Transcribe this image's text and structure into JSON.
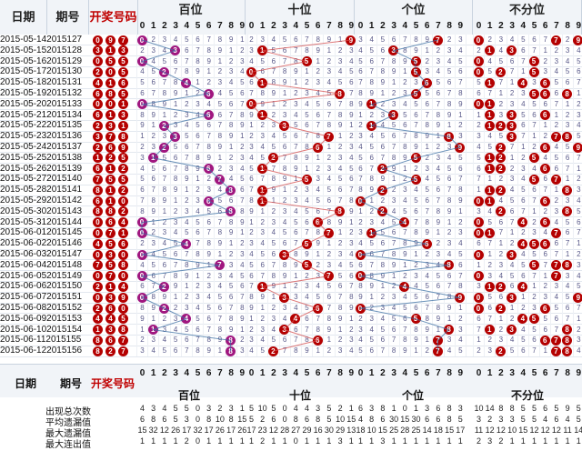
{
  "header": {
    "date_label": "日期",
    "issue_label": "期号",
    "draw_label": "开奖号码",
    "groups": [
      "百位",
      "十位",
      "个位",
      "不分位"
    ],
    "digits": [
      "0",
      "1",
      "2",
      "3",
      "4",
      "5",
      "6",
      "7",
      "8",
      "9"
    ]
  },
  "rows": [
    {
      "date": "2015-05-14",
      "issue": "2015127",
      "nums": [
        0,
        9,
        7
      ]
    },
    {
      "date": "2015-05-15",
      "issue": "2015128",
      "nums": [
        3,
        1,
        3
      ]
    },
    {
      "date": "2015-05-16",
      "issue": "2015129",
      "nums": [
        0,
        5,
        5
      ]
    },
    {
      "date": "2015-05-17",
      "issue": "2015130",
      "nums": [
        2,
        0,
        5
      ]
    },
    {
      "date": "2015-05-18",
      "issue": "2015131",
      "nums": [
        4,
        1,
        6
      ]
    },
    {
      "date": "2015-05-19",
      "issue": "2015132",
      "nums": [
        6,
        8,
        5
      ]
    },
    {
      "date": "2015-05-20",
      "issue": "2015133",
      "nums": [
        0,
        0,
        1
      ]
    },
    {
      "date": "2015-05-21",
      "issue": "2015134",
      "nums": [
        6,
        1,
        3
      ]
    },
    {
      "date": "2015-05-22",
      "issue": "2015135",
      "nums": [
        2,
        3,
        1
      ]
    },
    {
      "date": "2015-05-23",
      "issue": "2015136",
      "nums": [
        3,
        7,
        8
      ]
    },
    {
      "date": "2015-05-24",
      "issue": "2015137",
      "nums": [
        2,
        6,
        9
      ]
    },
    {
      "date": "2015-05-25",
      "issue": "2015138",
      "nums": [
        1,
        2,
        5
      ]
    },
    {
      "date": "2015-05-26",
      "issue": "2015139",
      "nums": [
        6,
        1,
        2
      ]
    },
    {
      "date": "2015-05-27",
      "issue": "2015140",
      "nums": [
        7,
        5,
        5
      ]
    },
    {
      "date": "2015-05-28",
      "issue": "2015141",
      "nums": [
        8,
        1,
        2
      ]
    },
    {
      "date": "2015-05-29",
      "issue": "2015142",
      "nums": [
        6,
        1,
        0
      ]
    },
    {
      "date": "2015-05-30",
      "issue": "2015143",
      "nums": [
        8,
        8,
        2
      ]
    },
    {
      "date": "2015-05-31",
      "issue": "2015144",
      "nums": [
        0,
        6,
        4
      ]
    },
    {
      "date": "2015-06-01",
      "issue": "2015145",
      "nums": [
        0,
        7,
        1
      ]
    },
    {
      "date": "2015-06-02",
      "issue": "2015146",
      "nums": [
        4,
        5,
        6
      ]
    },
    {
      "date": "2015-06-03",
      "issue": "2015147",
      "nums": [
        0,
        3,
        0
      ]
    },
    {
      "date": "2015-06-04",
      "issue": "2015148",
      "nums": [
        7,
        5,
        8
      ]
    },
    {
      "date": "2015-06-05",
      "issue": "2015149",
      "nums": [
        0,
        7,
        0
      ]
    },
    {
      "date": "2015-06-06",
      "issue": "2015150",
      "nums": [
        2,
        1,
        4
      ]
    },
    {
      "date": "2015-06-07",
      "issue": "2015151",
      "nums": [
        0,
        3,
        9
      ]
    },
    {
      "date": "2015-06-08",
      "issue": "2015152",
      "nums": [
        2,
        6,
        0
      ]
    },
    {
      "date": "2015-06-09",
      "issue": "2015153",
      "nums": [
        4,
        4,
        5
      ]
    },
    {
      "date": "2015-06-10",
      "issue": "2015154",
      "nums": [
        1,
        3,
        8
      ]
    },
    {
      "date": "2015-06-11",
      "issue": "2015155",
      "nums": [
        8,
        6,
        7
      ]
    },
    {
      "date": "2015-06-12",
      "issue": "2015156",
      "nums": [
        8,
        2,
        7
      ]
    }
  ],
  "footer": {
    "date_label": "日期",
    "issue_label": "期号",
    "draw_label": "开奖号码",
    "stat_labels": [
      "出现总次数",
      "平均遗漏值",
      "最大遗漏值",
      "最大连出值"
    ],
    "stats": {
      "bai": [
        "4 3 4 5 5 0 3 2 3 1",
        "6 8 6 5 3 0 8 10 8 15",
        "15 32 12 26 17 32 17 26 17 26",
        "1 1 1 1 2 0 1 1 1 1"
      ],
      "shi": [
        "5 10 5 0 4 4 3 5 2 1",
        "5 2 6 0 8 6 8 5 10 15",
        "17 23 12 28 27 29 16 30 29 13",
        "1 2 1 1 0 1 1 1 3 1"
      ],
      "ge": [
        "6 3 8 1 0 1 3 6 8 3",
        "4 8 6 30 15 30 6 6 8 5",
        "18 10 15 25 28 25 14 18 15 17",
        "1 1 3 1 1 1 1 1 1 1"
      ],
      "bufen": [
        "10 14 8 8 5 5 6 5 9 5",
        "3 2 3 3 5 5 4 6 4 5",
        "11 12 12 10 15 12 12 12 11 14",
        "2 3 2 1 1 1 1 1 1 1"
      ]
    }
  },
  "colors": {
    "ball": "#b40000",
    "ball_alt": "#a0167f",
    "line_blue": "#3b6fa3",
    "line_red": "#d44a4a",
    "header_bg": "#f1f4f8"
  }
}
